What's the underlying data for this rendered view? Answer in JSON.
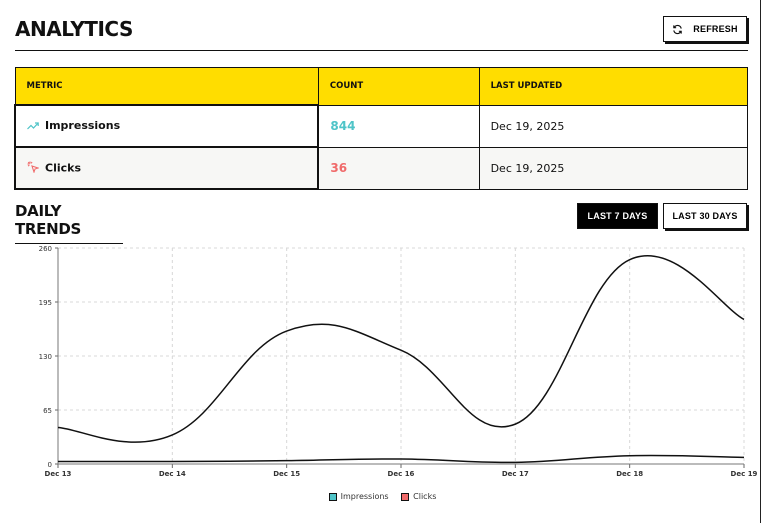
{
  "header": {
    "title": "ANALYTICS",
    "refresh_label": "REFRESH",
    "refresh_icon": "refresh-icon"
  },
  "table": {
    "columns": [
      "METRIC",
      "COUNT",
      "LAST UPDATED"
    ],
    "rows": [
      {
        "icon": "trending-up-icon",
        "metric": "Impressions",
        "count": "844",
        "count_color": "#4fc4c8",
        "last_updated": "Dec 19, 2025"
      },
      {
        "icon": "click-pointer-icon",
        "metric": "Clicks",
        "count": "36",
        "count_color": "#f06a6a",
        "last_updated": "Dec 19, 2025"
      }
    ]
  },
  "trends": {
    "title": "DAILY TRENDS",
    "ranges": [
      {
        "label": "LAST 7 DAYS",
        "active": true
      },
      {
        "label": "LAST 30 DAYS",
        "active": false
      }
    ]
  },
  "colors": {
    "accent_yellow": "#ffdd00",
    "impressions": "#4fc4c8",
    "clicks": "#f06a6a"
  },
  "chart_data": {
    "type": "line",
    "title": "DAILY TRENDS",
    "xlabel": "",
    "ylabel": "",
    "categories": [
      "Dec 13",
      "Dec 14",
      "Dec 15",
      "Dec 16",
      "Dec 17",
      "Dec 18",
      "Dec 19"
    ],
    "series": [
      {
        "name": "Impressions",
        "color": "#4fc4c8",
        "values": [
          44,
          35,
          160,
          137,
          48,
          246,
          174
        ]
      },
      {
        "name": "Clicks",
        "color": "#f06a6a",
        "values": [
          3,
          3,
          4,
          6,
          2,
          10,
          8
        ]
      }
    ],
    "yticks": [
      0,
      65,
      130,
      195,
      260
    ],
    "ylim": [
      0,
      260
    ],
    "grid": true,
    "legend_position": "bottom",
    "curve": "smooth"
  }
}
